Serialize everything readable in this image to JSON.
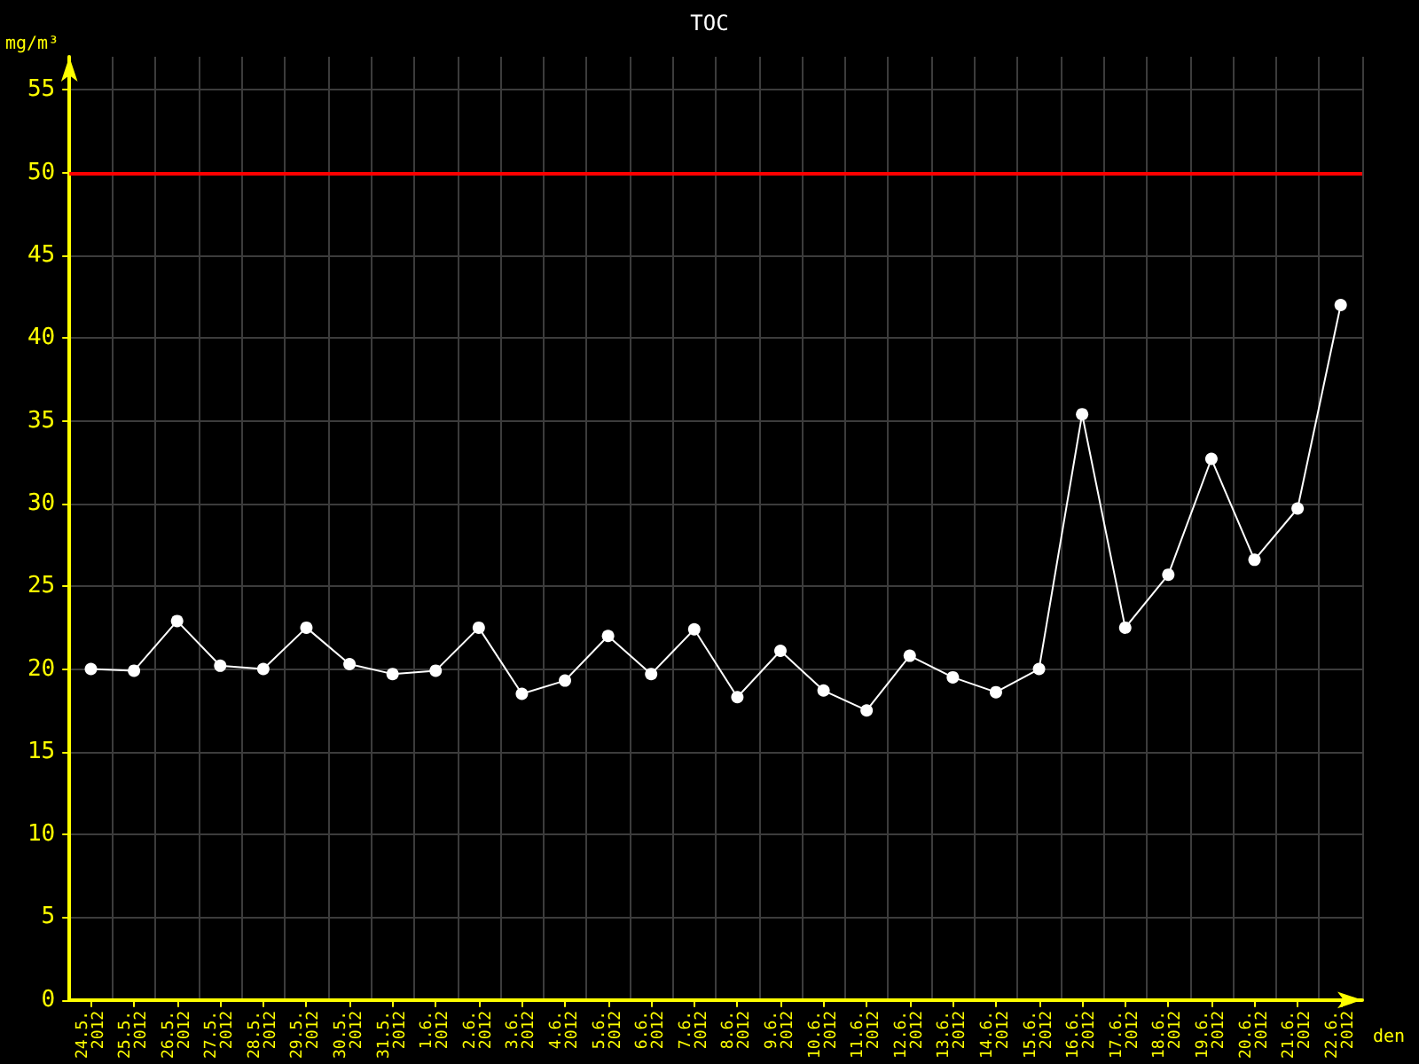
{
  "chart_data": {
    "type": "line",
    "title": "TOC",
    "xlabel": "den",
    "ylabel": "mg/m³",
    "categories": [
      "24.5.\n2012",
      "25.5.\n2012",
      "26.5.\n2012",
      "27.5.\n2012",
      "28.5.\n2012",
      "29.5.\n2012",
      "30.5.\n2012",
      "31.5.\n2012",
      "1.6.\n2012",
      "2.6.\n2012",
      "3.6.\n2012",
      "4.6.\n2012",
      "5.6.\n2012",
      "6.6.\n2012",
      "7.6.\n2012",
      "8.6.\n2012",
      "9.6.\n2012",
      "10.6.\n2012",
      "11.6.\n2012",
      "12.6.\n2012",
      "13.6.\n2012",
      "14.6.\n2012",
      "15.6.\n2012",
      "16.6.\n2012",
      "17.6.\n2012",
      "18.6.\n2012",
      "19.6.\n2012",
      "20.6.\n2012",
      "21.6.\n2012",
      "22.6.\n2012"
    ],
    "series": [
      {
        "color": "#ffffff",
        "values": [
          20.0,
          19.9,
          22.9,
          20.2,
          20.0,
          22.5,
          20.3,
          19.7,
          19.9,
          22.5,
          18.5,
          19.3,
          22.0,
          19.7,
          22.4,
          18.3,
          21.1,
          18.7,
          17.5,
          20.8,
          19.5,
          18.6,
          20.0,
          35.4,
          22.5,
          25.7,
          32.7,
          26.6,
          29.7,
          42.0
        ]
      }
    ],
    "ylim": [
      0,
      57
    ],
    "yticks": [
      0,
      5,
      10,
      15,
      20,
      25,
      30,
      35,
      40,
      45,
      50,
      55
    ],
    "ref_lines": [
      {
        "axis": "y",
        "value": 50,
        "color": "#ff0000"
      }
    ],
    "grid": true,
    "marker": "circle",
    "line_style": "solid"
  }
}
